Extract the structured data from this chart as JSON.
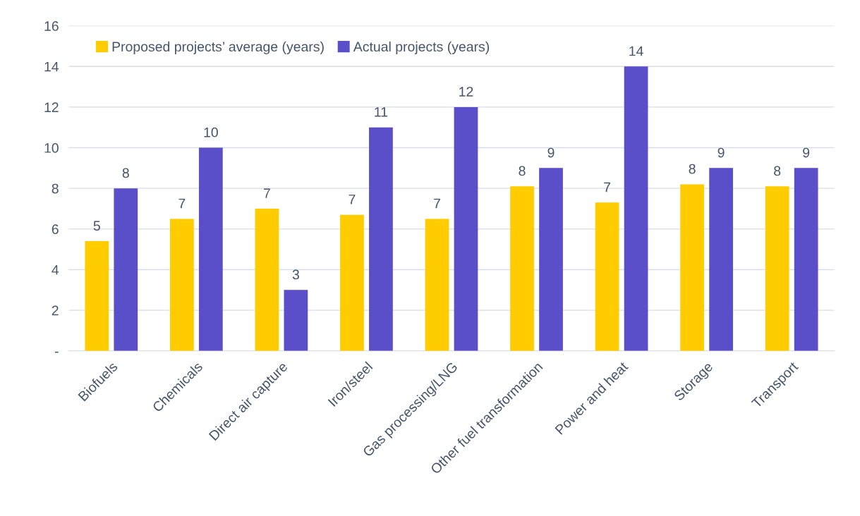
{
  "chart_data": {
    "type": "bar",
    "categories": [
      "Biofuels",
      "Chemicals",
      "Direct air capture",
      "Iron/steel",
      "Gas processing/LNG",
      "Other fuel transformation",
      "Power and heat",
      "Storage",
      "Transport"
    ],
    "series": [
      {
        "name": "Proposed projects’ average (years)",
        "color": "#ffcc00",
        "values": [
          5.4,
          6.5,
          7.0,
          6.7,
          6.5,
          8.1,
          7.3,
          8.2,
          8.1
        ],
        "value_labels": [
          "5",
          "7",
          "7",
          "7",
          "7",
          "8",
          "7",
          "8",
          "8"
        ]
      },
      {
        "name": "Actual projects (years)",
        "color": "#5b4fc9",
        "values": [
          8,
          10,
          3,
          11,
          12,
          9,
          14,
          9,
          9
        ],
        "value_labels": [
          "8",
          "10",
          "3",
          "11",
          "12",
          "9",
          "14",
          "9",
          "9"
        ]
      }
    ],
    "ylim": [
      0,
      16
    ],
    "yticks": [
      {
        "value": 0,
        "label": "-"
      },
      2,
      4,
      6,
      8,
      10,
      12,
      14,
      16
    ],
    "grid": "y",
    "legend": "top left"
  }
}
